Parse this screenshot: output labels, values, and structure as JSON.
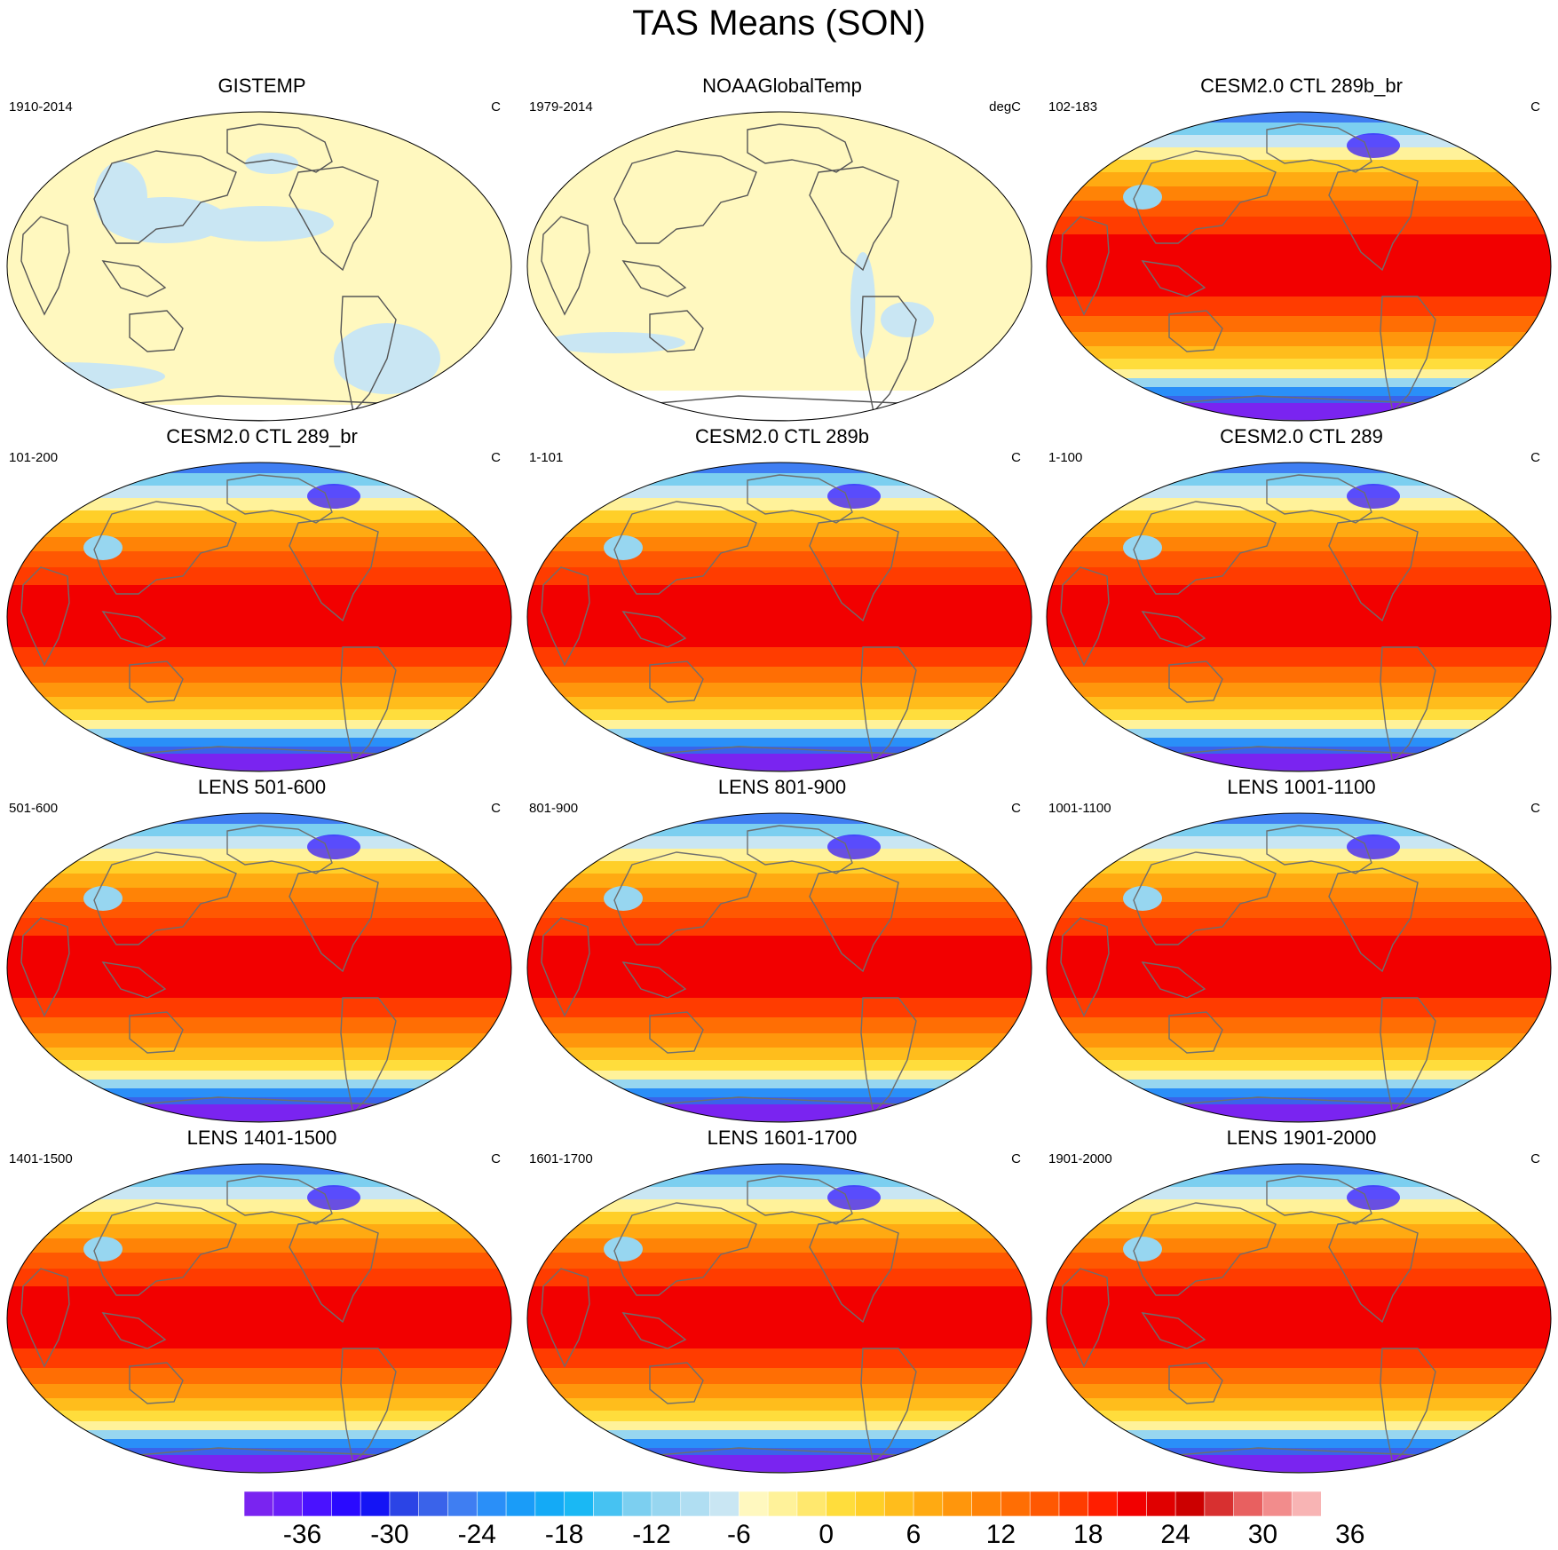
{
  "title": "TAS Means (SON)",
  "panels": [
    {
      "title": "GISTEMP",
      "years": "1910-2014",
      "units": "C",
      "kind": "obs-gis"
    },
    {
      "title": "NOAAGlobalTemp",
      "years": "1979-2014",
      "units": "degC",
      "kind": "obs-noaa"
    },
    {
      "title": "CESM2.0 CTL 289b_br",
      "years": "102-183",
      "units": "C",
      "kind": "model"
    },
    {
      "title": "CESM2.0 CTL 289_br",
      "years": "101-200",
      "units": "C",
      "kind": "model"
    },
    {
      "title": "CESM2.0 CTL 289b",
      "years": "1-101",
      "units": "C",
      "kind": "model"
    },
    {
      "title": "CESM2.0 CTL 289",
      "years": "1-100",
      "units": "C",
      "kind": "model"
    },
    {
      "title": "LENS 501-600",
      "years": "501-600",
      "units": "C",
      "kind": "model"
    },
    {
      "title": "LENS 801-900",
      "years": "801-900",
      "units": "C",
      "kind": "model"
    },
    {
      "title": "LENS 1001-1100",
      "years": "1001-1100",
      "units": "C",
      "kind": "model"
    },
    {
      "title": "LENS 1401-1500",
      "years": "1401-1500",
      "units": "C",
      "kind": "model"
    },
    {
      "title": "LENS 1601-1700",
      "years": "1601-1700",
      "units": "C",
      "kind": "model"
    },
    {
      "title": "LENS 1901-2000",
      "years": "1901-2000",
      "units": "C",
      "kind": "model"
    }
  ],
  "colorbar": {
    "labels": [
      "-36",
      "-30",
      "-24",
      "-18",
      "-12",
      "-6",
      "0",
      "6",
      "12",
      "18",
      "24",
      "30",
      "36"
    ],
    "colors": [
      "#7a24f0",
      "#6a1ff8",
      "#4a12ff",
      "#2a0aff",
      "#1414f5",
      "#2b44e6",
      "#3a63ea",
      "#3f7ef2",
      "#2a8ff8",
      "#1a9cf8",
      "#14aaf6",
      "#1ab8f4",
      "#46c2f2",
      "#7ccff0",
      "#97d6f0",
      "#b0def2",
      "#c9e6f3",
      "#fff8bf",
      "#fff29a",
      "#ffe86e",
      "#ffdd3c",
      "#ffcf28",
      "#ffbd1c",
      "#ffaa12",
      "#ff960c",
      "#ff8306",
      "#ff6e04",
      "#ff5802",
      "#ff3c00",
      "#ff1e00",
      "#f20000",
      "#e00000",
      "#cc0000",
      "#d83030",
      "#e86060",
      "#f28c8c",
      "#f8b4b4"
    ]
  }
}
